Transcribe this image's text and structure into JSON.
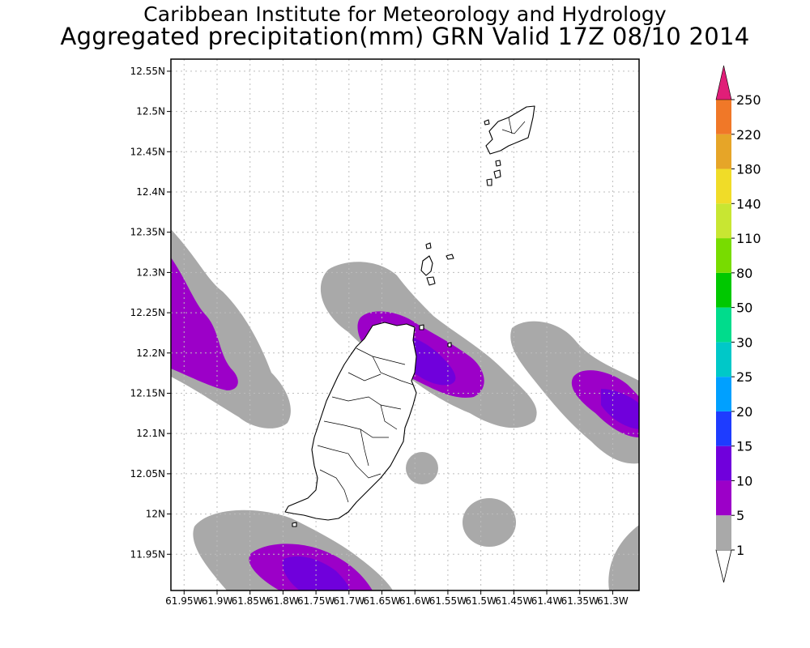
{
  "header": {
    "title": "Caribbean Institute for Meteorology and Hydrology",
    "subtitle": "Aggregated precipitation(mm) GRN Valid 17Z 08/10 2014"
  },
  "map": {
    "lon_range": [
      -61.97,
      -61.26
    ],
    "lat_range": [
      11.905,
      12.565
    ],
    "grid": true,
    "lat_ticks": [
      {
        "value": 12.55,
        "label": "12.55N"
      },
      {
        "value": 12.5,
        "label": "12.5N"
      },
      {
        "value": 12.45,
        "label": "12.45N"
      },
      {
        "value": 12.4,
        "label": "12.4N"
      },
      {
        "value": 12.35,
        "label": "12.35N"
      },
      {
        "value": 12.3,
        "label": "12.3N"
      },
      {
        "value": 12.25,
        "label": "12.25N"
      },
      {
        "value": 12.2,
        "label": "12.2N"
      },
      {
        "value": 12.15,
        "label": "12.15N"
      },
      {
        "value": 12.1,
        "label": "12.1N"
      },
      {
        "value": 12.05,
        "label": "12.05N"
      },
      {
        "value": 12.0,
        "label": "12N"
      },
      {
        "value": 11.95,
        "label": "11.95N"
      }
    ],
    "lon_ticks": [
      {
        "value": -61.95,
        "label": "61.95W"
      },
      {
        "value": -61.9,
        "label": "61.9W"
      },
      {
        "value": -61.85,
        "label": "61.85W"
      },
      {
        "value": -61.8,
        "label": "61.8W"
      },
      {
        "value": -61.75,
        "label": "61.75W"
      },
      {
        "value": -61.7,
        "label": "61.7W"
      },
      {
        "value": -61.65,
        "label": "61.65W"
      },
      {
        "value": -61.6,
        "label": "61.6W"
      },
      {
        "value": -61.55,
        "label": "61.55W"
      },
      {
        "value": -61.5,
        "label": "61.5W"
      },
      {
        "value": -61.45,
        "label": "61.45W"
      },
      {
        "value": -61.4,
        "label": "61.4W"
      },
      {
        "value": -61.35,
        "label": "61.35W"
      },
      {
        "value": -61.3,
        "label": "61.3W"
      }
    ]
  },
  "colorbar": {
    "labels": [
      "1",
      "5",
      "10",
      "15",
      "20",
      "25",
      "30",
      "50",
      "80",
      "110",
      "140",
      "180",
      "220",
      "250"
    ],
    "colors": {
      "band_1_5": "#a9a9a9",
      "band_5_10": "#9c00c8",
      "band_10_15": "#7000dc",
      "band_15_20": "#1e3cff",
      "band_20_25": "#00a0ff",
      "band_25_30": "#00c8c8",
      "band_30_50": "#00dc8c",
      "band_50_80": "#00c800",
      "band_80_110": "#78dc00",
      "band_110_140": "#c8e632",
      "band_140_180": "#f0dc28",
      "band_180_220": "#e6a528",
      "band_220_250": "#f07828",
      "band_250_plus": "#f03c3c",
      "top_arrow": "#e01e78"
    }
  },
  "legend_colors": {
    "land_outline": "#000000",
    "grid_line": "#bdbdbd"
  }
}
